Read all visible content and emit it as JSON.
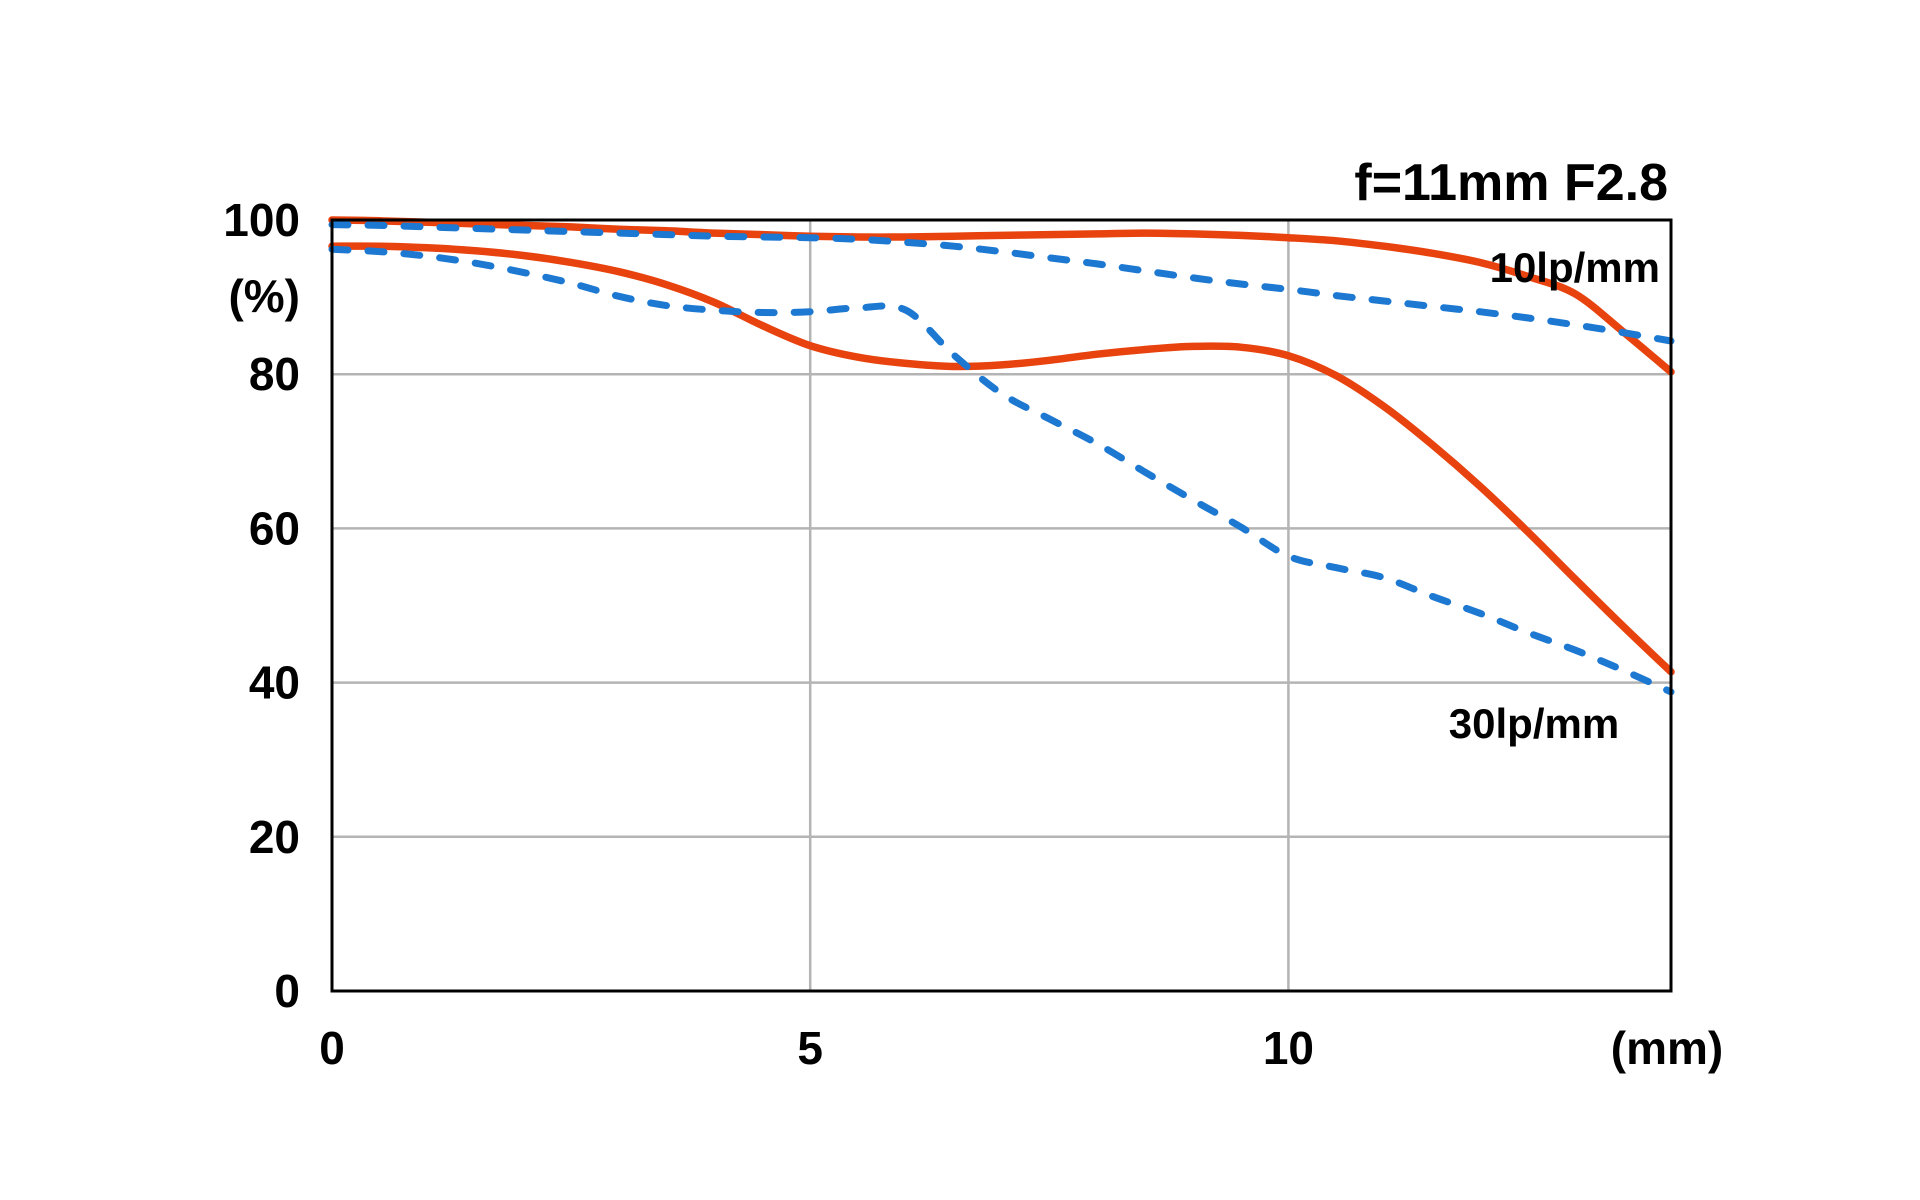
{
  "chart": {
    "title": "f=11mm F2.8",
    "y_unit": "(%)",
    "x_unit": "(mm)"
  },
  "chart_data": {
    "type": "line",
    "title": "f=11mm F2.8",
    "xlabel": "(mm)",
    "ylabel": "(%)",
    "xlim": [
      0,
      14
    ],
    "ylim": [
      0,
      100
    ],
    "x_ticks": [
      0,
      5,
      10
    ],
    "y_ticks": [
      0,
      20,
      40,
      60,
      80,
      100
    ],
    "grid": {
      "x_at": [
        5,
        10
      ],
      "y_at": [
        20,
        40,
        60,
        80
      ]
    },
    "legend": [
      {
        "label": "10lp/mm"
      },
      {
        "label": "30lp/mm"
      }
    ],
    "colors": {
      "solid_line": "#e8430e",
      "dashed_line": "#1d78d2",
      "grid": "#b4b4b4",
      "axis": "#000000"
    },
    "x_step": 0.5,
    "series": [
      {
        "name": "10lp/mm (solid)",
        "style": "solid",
        "color": "#e8430e",
        "values": [
          100,
          99.9,
          99.7,
          99.5,
          99.3,
          99.1,
          98.8,
          98.6,
          98.3,
          98.1,
          97.9,
          97.8,
          97.8,
          97.9,
          98.0,
          98.1,
          98.2,
          98.3,
          98.2,
          98.0,
          97.7,
          97.3,
          96.6,
          95.7,
          94.5,
          92.7,
          90.4,
          85.5,
          80.3
        ]
      },
      {
        "name": "10lp/mm (dashed)",
        "style": "dashed",
        "color": "#1d78d2",
        "values": [
          99.4,
          99.3,
          99.1,
          98.9,
          98.7,
          98.5,
          98.3,
          98.1,
          97.9,
          97.8,
          97.7,
          97.5,
          97.1,
          96.6,
          95.9,
          95.1,
          94.3,
          93.4,
          92.5,
          91.7,
          91.0,
          90.2,
          89.5,
          88.8,
          88.1,
          87.3,
          86.4,
          85.4,
          84.3
        ]
      },
      {
        "name": "30lp/mm (solid)",
        "style": "solid",
        "color": "#e8430e",
        "values": [
          96.6,
          96.6,
          96.4,
          96.0,
          95.4,
          94.5,
          93.3,
          91.6,
          89.3,
          86.3,
          83.7,
          82.2,
          81.4,
          81.0,
          81.2,
          81.8,
          82.6,
          83.2,
          83.6,
          83.5,
          82.4,
          79.8,
          75.8,
          70.9,
          65.5,
          59.6,
          53.4,
          47.3,
          41.4
        ]
      },
      {
        "name": "30lp/mm (dashed)",
        "style": "dashed",
        "color": "#1d78d2",
        "values": [
          96.2,
          95.9,
          95.3,
          94.4,
          93.2,
          91.8,
          90.1,
          88.9,
          88.3,
          88.0,
          88.1,
          88.6,
          88.3,
          82.5,
          77.5,
          74.2,
          71.0,
          67.3,
          63.7,
          60.2,
          56.4,
          54.9,
          53.6,
          51.2,
          49.0,
          46.5,
          44.2,
          41.6,
          38.8
        ]
      }
    ]
  }
}
